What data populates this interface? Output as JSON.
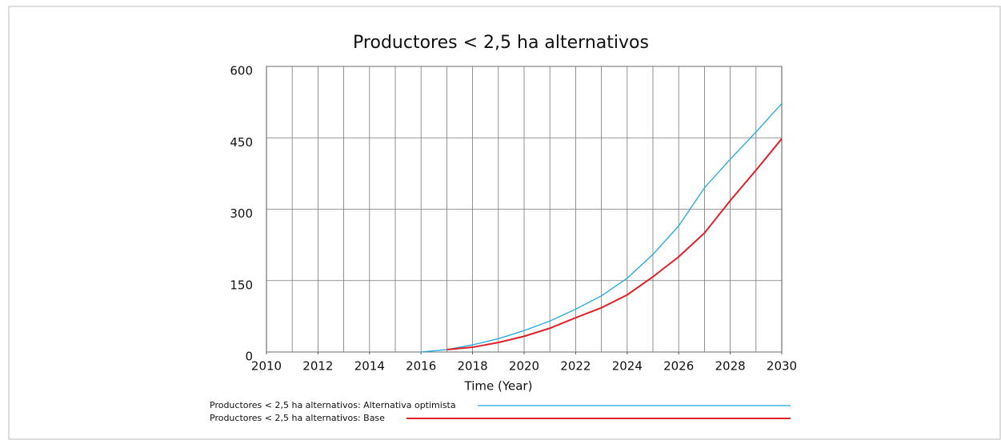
{
  "chart_data": {
    "type": "line",
    "title": "Productores < 2,5 ha alternativos",
    "x_label": "Time (Year)",
    "x": [
      2016,
      2017,
      2018,
      2019,
      2020,
      2021,
      2022,
      2023,
      2024,
      2025,
      2026,
      2027,
      2028,
      2029,
      2030
    ],
    "series": [
      {
        "name": "Productores < 2,5 ha alternativos: Alternativa optimista",
        "color": "#1ea7e1",
        "values": [
          0,
          5,
          15,
          28,
          45,
          65,
          90,
          118,
          155,
          205,
          265,
          345,
          405,
          462,
          522
        ]
      },
      {
        "name": "Productores < 2,5 ha alternativos: Base",
        "color": "#e0202a",
        "values": [
          null,
          5,
          10,
          20,
          33,
          50,
          72,
          93,
          120,
          158,
          200,
          250,
          318,
          382,
          448
        ]
      }
    ],
    "xlim": [
      2010,
      2030
    ],
    "xticks": [
      2010,
      2012,
      2014,
      2016,
      2018,
      2020,
      2022,
      2024,
      2026,
      2028,
      2030
    ],
    "x_grid_step": 1,
    "ylim": [
      0,
      600
    ],
    "yticks": [
      0,
      150,
      300,
      450,
      600
    ],
    "grid": true
  }
}
